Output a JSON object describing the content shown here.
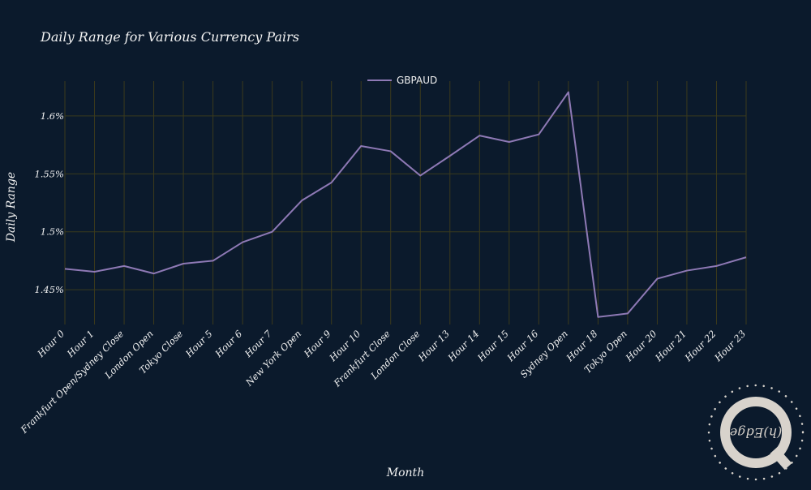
{
  "chart_data": {
    "type": "line",
    "title": "Daily Range for Various Currency Pairs",
    "xlabel": "Month",
    "ylabel": "Daily Range",
    "categories": [
      "Hour 0",
      "Hour 1",
      "Frankfurt Open/Sydney Close",
      "London Open",
      "Tokyo Close",
      "Hour 5",
      "Hour 6",
      "Hour 7",
      "New York Open",
      "Hour 9",
      "Hour 10",
      "Frankfurt Close",
      "London Close",
      "Hour 13",
      "Hour 14",
      "Hour 15",
      "Hour 16",
      "Sydney Open",
      "Hour 18",
      "Tokyo Open",
      "Hour 20",
      "Hour 21",
      "Hour 22",
      "Hour 23"
    ],
    "series": [
      {
        "name": "GBPAUD",
        "color": "#8e79b5",
        "values": [
          1.468,
          1.4655,
          1.4705,
          1.464,
          1.4725,
          1.475,
          1.491,
          1.5,
          1.527,
          1.5425,
          1.574,
          1.5695,
          1.5485,
          1.5655,
          1.583,
          1.5775,
          1.584,
          1.6205,
          1.4265,
          1.4295,
          1.4595,
          1.4665,
          1.4705,
          1.478
        ]
      }
    ],
    "ylim": [
      1.42,
      1.63
    ],
    "yticks": [
      1.45,
      1.5,
      1.55,
      1.6
    ],
    "ytick_labels": [
      "1.45%",
      "1.5%",
      "1.55%",
      "1.6%"
    ],
    "grid": true,
    "legend_position": "top-center",
    "colors": {
      "background": "#0b1a2c",
      "grid": "#3b3a1c",
      "text": "#f2f2f2"
    }
  },
  "logo": {
    "text": "(h)Edge",
    "name": "hedge-logo"
  }
}
